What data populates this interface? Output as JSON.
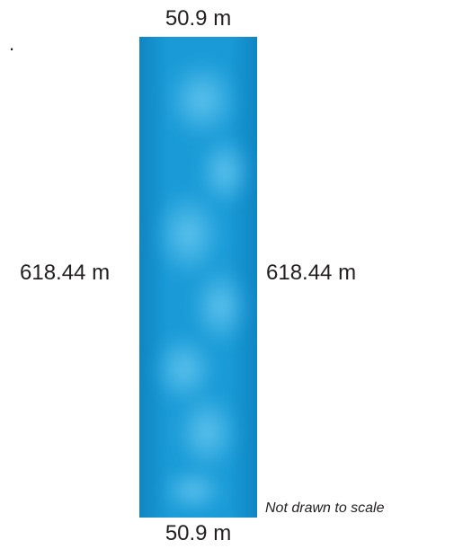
{
  "bullet": ".",
  "dimensions": {
    "top": "50.9 m",
    "bottom": "50.9 m",
    "left": "618.44 m",
    "right": "618.44 m"
  },
  "note": "Not drawn to scale",
  "colors": {
    "water_base": "#1a9bd7",
    "water_light": "#5cc4ef",
    "water_dark": "#0f86c4"
  }
}
